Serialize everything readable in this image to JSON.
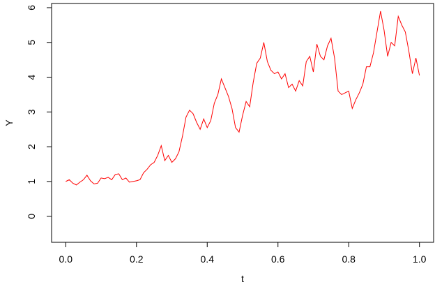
{
  "chart_data": {
    "type": "line",
    "title": "",
    "xlabel": "t",
    "ylabel": "Y",
    "xlim": [
      -0.04,
      1.04
    ],
    "ylim": [
      -0.75,
      6.12
    ],
    "xticks": [
      0.0,
      0.2,
      0.4,
      0.6,
      0.8,
      1.0
    ],
    "xtick_labels": [
      "0.0",
      "0.2",
      "0.4",
      "0.6",
      "0.8",
      "1.0"
    ],
    "yticks": [
      0,
      1,
      2,
      3,
      4,
      5,
      6
    ],
    "ytick_labels": [
      "0",
      "1",
      "2",
      "3",
      "4",
      "5",
      "6"
    ],
    "grid": false,
    "legend": "none",
    "series": [
      {
        "color": "#ff0000",
        "x": [
          0.0,
          0.01,
          0.02,
          0.03,
          0.04,
          0.05,
          0.06,
          0.07,
          0.08,
          0.09,
          0.1,
          0.11,
          0.12,
          0.13,
          0.14,
          0.15,
          0.16,
          0.17,
          0.18,
          0.19,
          0.2,
          0.21,
          0.22,
          0.23,
          0.24,
          0.25,
          0.26,
          0.27,
          0.28,
          0.29,
          0.3,
          0.31,
          0.32,
          0.33,
          0.34,
          0.35,
          0.36,
          0.37,
          0.38,
          0.39,
          0.4,
          0.41,
          0.42,
          0.43,
          0.44,
          0.45,
          0.46,
          0.47,
          0.48,
          0.49,
          0.5,
          0.51,
          0.52,
          0.53,
          0.54,
          0.55,
          0.56,
          0.57,
          0.58,
          0.59,
          0.6,
          0.61,
          0.62,
          0.63,
          0.64,
          0.65,
          0.66,
          0.67,
          0.68,
          0.69,
          0.7,
          0.71,
          0.72,
          0.73,
          0.74,
          0.75,
          0.76,
          0.77,
          0.78,
          0.79,
          0.8,
          0.81,
          0.82,
          0.83,
          0.84,
          0.85,
          0.86,
          0.87,
          0.88,
          0.89,
          0.9,
          0.91,
          0.92,
          0.93,
          0.94,
          0.95,
          0.96,
          0.97,
          0.98,
          0.99,
          1.0
        ],
        "y": [
          1.0,
          1.05,
          0.95,
          0.9,
          0.98,
          1.05,
          1.18,
          1.02,
          0.93,
          0.95,
          1.1,
          1.08,
          1.12,
          1.05,
          1.2,
          1.22,
          1.05,
          1.1,
          0.98,
          1.0,
          1.02,
          1.05,
          1.25,
          1.35,
          1.48,
          1.55,
          1.75,
          2.03,
          1.6,
          1.75,
          1.55,
          1.65,
          1.85,
          2.3,
          2.85,
          3.05,
          2.95,
          2.7,
          2.5,
          2.8,
          2.55,
          2.75,
          3.25,
          3.5,
          3.95,
          3.7,
          3.45,
          3.1,
          2.55,
          2.42,
          2.9,
          3.3,
          3.15,
          3.85,
          4.4,
          4.55,
          5.0,
          4.45,
          4.2,
          4.1,
          4.15,
          3.95,
          4.1,
          3.7,
          3.8,
          3.6,
          3.9,
          3.75,
          4.45,
          4.6,
          4.15,
          4.95,
          4.6,
          4.5,
          4.9,
          5.12,
          4.55,
          3.6,
          3.5,
          3.55,
          3.6,
          3.1,
          3.35,
          3.55,
          3.8,
          4.3,
          4.3,
          4.7,
          5.3,
          5.9,
          5.35,
          4.6,
          5.0,
          4.9,
          5.75,
          5.5,
          5.3,
          4.75,
          4.1,
          4.55,
          4.05
        ]
      }
    ]
  }
}
